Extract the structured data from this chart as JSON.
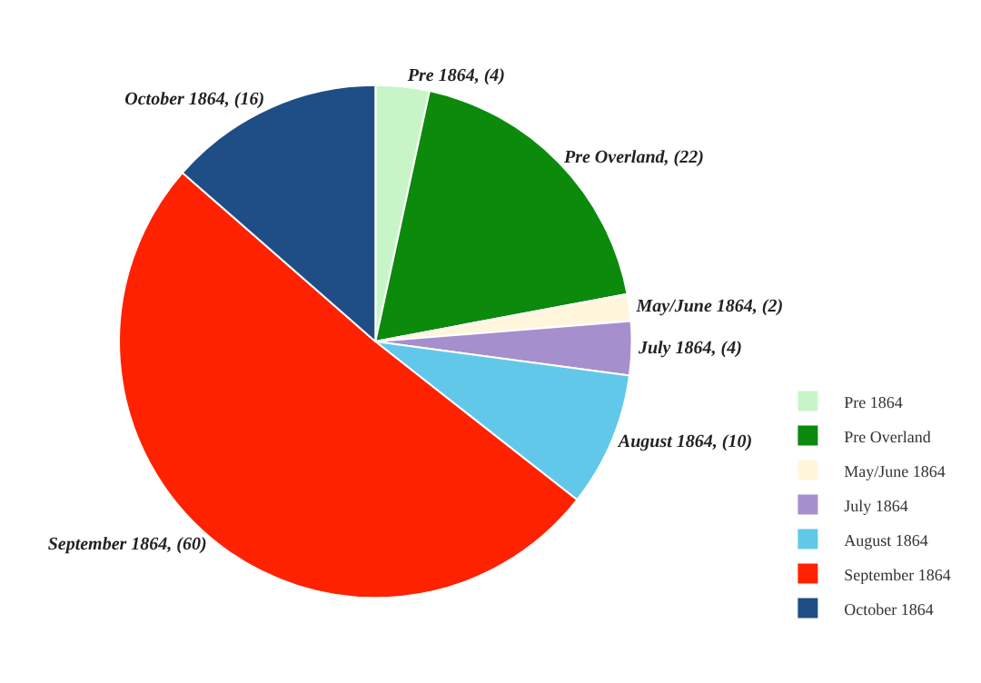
{
  "chart_data": {
    "type": "pie",
    "categories": [
      "Pre 1864",
      "Pre Overland",
      "May/June 1864",
      "July 1864",
      "August 1864",
      "September 1864",
      "October 1864"
    ],
    "values": [
      4,
      22,
      2,
      4,
      10,
      60,
      16
    ],
    "colors": [
      "#c8f5c8",
      "#0c8a0c",
      "#fff6dc",
      "#a58fcc",
      "#62c8ea",
      "#ff2200",
      "#1f4e86"
    ],
    "value_labels": [
      "Pre 1864, (4)",
      "Pre Overland, (22)",
      "May/June 1864, (2)",
      "July 1864, (4)",
      "August 1864, (10)",
      "September 1864, (60)",
      "October 1864, (16)"
    ],
    "legend": "bottom right"
  }
}
